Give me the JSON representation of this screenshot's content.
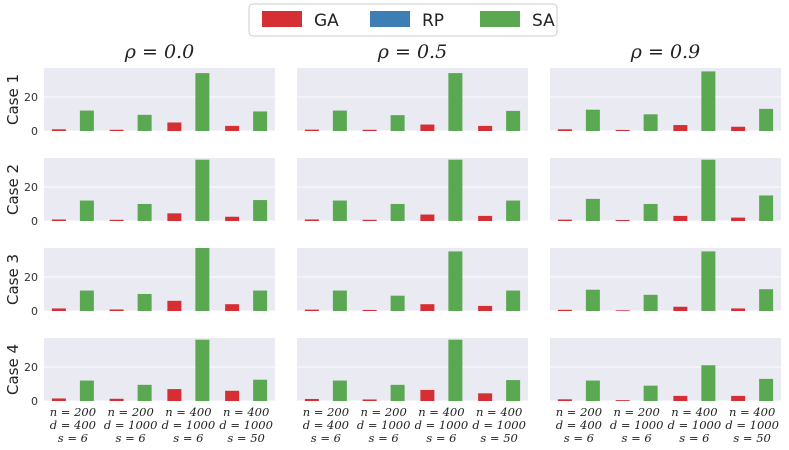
{
  "legend": [
    {
      "name": "GA",
      "color": "#d62f33"
    },
    {
      "name": "RP",
      "color": "#3d7fb5"
    },
    {
      "name": "SA",
      "color": "#5aa852"
    }
  ],
  "col_titles": [
    "ρ = 0.0",
    "ρ = 0.5",
    "ρ = 0.9"
  ],
  "row_labels": [
    "Case 1",
    "Case 2",
    "Case 3",
    "Case 4"
  ],
  "x_tick_labels": [
    [
      "n = 200",
      "d = 400",
      "s = 6"
    ],
    [
      "n = 200",
      "d = 1000",
      "s = 6"
    ],
    [
      "n = 400",
      "d = 1000",
      "s = 6"
    ],
    [
      "n = 400",
      "d = 1000",
      "s = 50"
    ]
  ],
  "chart_data": {
    "type": "bar",
    "layout": "grid 4 rows x 3 columns (small multiples)",
    "categories": [
      "n = 200, d = 400, s = 6",
      "n = 200, d = 1000, s = 6",
      "n = 400, d = 1000, s = 6",
      "n = 400, d = 1000, s = 50"
    ],
    "series_names": [
      "GA",
      "RP",
      "SA"
    ],
    "y_ticks": [
      0,
      20
    ],
    "y_tick_labels": [
      "0",
      "20"
    ],
    "ylim": [
      0,
      37
    ],
    "grid": true,
    "legend_position": "top-center",
    "panels": [
      {
        "row": "Case 1",
        "col": "ρ = 0.0",
        "series": [
          {
            "name": "GA",
            "values": [
              1.0,
              0.7,
              5.0,
              3.0
            ]
          },
          {
            "name": "RP",
            "values": [
              0,
              0,
              0,
              0
            ]
          },
          {
            "name": "SA",
            "values": [
              12.0,
              9.5,
              34.0,
              11.5
            ]
          }
        ]
      },
      {
        "row": "Case 1",
        "col": "ρ = 0.5",
        "series": [
          {
            "name": "GA",
            "values": [
              0.8,
              0.7,
              3.8,
              3.0
            ]
          },
          {
            "name": "RP",
            "values": [
              0,
              0,
              0,
              0
            ]
          },
          {
            "name": "SA",
            "values": [
              12.0,
              9.3,
              34.0,
              11.8
            ]
          }
        ]
      },
      {
        "row": "Case 1",
        "col": "ρ = 0.9",
        "series": [
          {
            "name": "GA",
            "values": [
              1.0,
              0.6,
              3.5,
              2.5
            ]
          },
          {
            "name": "RP",
            "values": [
              0,
              0,
              0,
              0
            ]
          },
          {
            "name": "SA",
            "values": [
              12.5,
              9.8,
              35.0,
              13.0
            ]
          }
        ]
      },
      {
        "row": "Case 2",
        "col": "ρ = 0.0",
        "series": [
          {
            "name": "GA",
            "values": [
              0.9,
              0.7,
              4.5,
              2.5
            ]
          },
          {
            "name": "RP",
            "values": [
              0,
              0,
              0,
              0
            ]
          },
          {
            "name": "SA",
            "values": [
              12.0,
              10.0,
              36.0,
              12.3
            ]
          }
        ]
      },
      {
        "row": "Case 2",
        "col": "ρ = 0.5",
        "series": [
          {
            "name": "GA",
            "values": [
              0.9,
              0.7,
              3.8,
              3.0
            ]
          },
          {
            "name": "RP",
            "values": [
              0,
              0,
              0,
              0
            ]
          },
          {
            "name": "SA",
            "values": [
              12.0,
              10.0,
              36.0,
              12.0
            ]
          }
        ]
      },
      {
        "row": "Case 2",
        "col": "ρ = 0.9",
        "series": [
          {
            "name": "GA",
            "values": [
              0.8,
              0.6,
              3.0,
              2.0
            ]
          },
          {
            "name": "RP",
            "values": [
              0,
              0,
              0,
              0
            ]
          },
          {
            "name": "SA",
            "values": [
              13.0,
              10.0,
              36.0,
              15.0
            ]
          }
        ]
      },
      {
        "row": "Case 3",
        "col": "ρ = 0.0",
        "series": [
          {
            "name": "GA",
            "values": [
              1.5,
              0.9,
              6.0,
              4.0
            ]
          },
          {
            "name": "RP",
            "values": [
              0,
              0,
              0,
              0
            ]
          },
          {
            "name": "SA",
            "values": [
              12.0,
              10.0,
              37.0,
              12.0
            ]
          }
        ]
      },
      {
        "row": "Case 3",
        "col": "ρ = 0.5",
        "series": [
          {
            "name": "GA",
            "values": [
              0.8,
              0.6,
              4.0,
              3.0
            ]
          },
          {
            "name": "RP",
            "values": [
              0,
              0,
              0,
              0
            ]
          },
          {
            "name": "SA",
            "values": [
              12.0,
              9.0,
              35.0,
              12.0
            ]
          }
        ]
      },
      {
        "row": "Case 3",
        "col": "ρ = 0.9",
        "series": [
          {
            "name": "GA",
            "values": [
              0.7,
              0.4,
              2.5,
              1.5
            ]
          },
          {
            "name": "RP",
            "values": [
              0,
              0,
              0,
              0
            ]
          },
          {
            "name": "SA",
            "values": [
              12.5,
              9.5,
              35.0,
              12.8
            ]
          }
        ]
      },
      {
        "row": "Case 4",
        "col": "ρ = 0.0",
        "series": [
          {
            "name": "GA",
            "values": [
              1.5,
              1.3,
              7.0,
              6.0
            ]
          },
          {
            "name": "RP",
            "values": [
              0,
              0,
              0,
              0
            ]
          },
          {
            "name": "SA",
            "values": [
              12.0,
              9.5,
              36.0,
              12.5
            ]
          }
        ]
      },
      {
        "row": "Case 4",
        "col": "ρ = 0.5",
        "series": [
          {
            "name": "GA",
            "values": [
              1.2,
              0.9,
              6.5,
              4.5
            ]
          },
          {
            "name": "RP",
            "values": [
              0,
              0,
              0,
              0
            ]
          },
          {
            "name": "SA",
            "values": [
              12.0,
              9.5,
              36.0,
              12.3
            ]
          }
        ]
      },
      {
        "row": "Case 4",
        "col": "ρ = 0.9",
        "series": [
          {
            "name": "GA",
            "values": [
              1.0,
              0.5,
              3.0,
              3.0
            ]
          },
          {
            "name": "RP",
            "values": [
              0,
              0,
              0,
              0
            ]
          },
          {
            "name": "SA",
            "values": [
              12.0,
              9.0,
              21.0,
              13.0
            ]
          }
        ]
      }
    ]
  }
}
